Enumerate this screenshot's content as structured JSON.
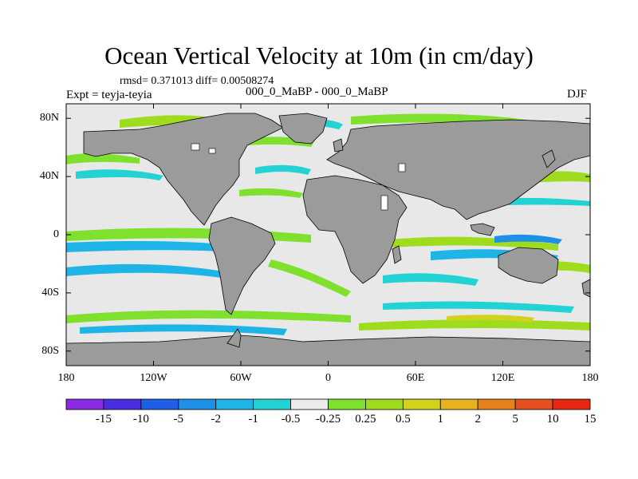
{
  "title": "Ocean Vertical Velocity at 10m (in cm/day)",
  "stats_line": "rmsd= 0.371013 diff= 0.00508274",
  "experiment_line": "Expt = teyja-teyia",
  "comparison_line": "000_0_MaBP - 000_0_MaBP",
  "season": "DJF",
  "map": {
    "lat_ticks": [
      {
        "label": "80N",
        "value": 80
      },
      {
        "label": "40N",
        "value": 40
      },
      {
        "label": "0",
        "value": 0
      },
      {
        "label": "40S",
        "value": -40
      },
      {
        "label": "80S",
        "value": -80
      }
    ],
    "lon_ticks": [
      {
        "label": "180",
        "value": -180
      },
      {
        "label": "120W",
        "value": -120
      },
      {
        "label": "60W",
        "value": -60
      },
      {
        "label": "0",
        "value": 0
      },
      {
        "label": "60E",
        "value": 60
      },
      {
        "label": "120E",
        "value": 120
      },
      {
        "label": "180",
        "value": 180
      }
    ],
    "land_color": "#9b9b9b",
    "ocean_background": "#e8e8e8"
  },
  "colorbar": {
    "colors": [
      "#8a2be2",
      "#4b2ee0",
      "#1e5fe6",
      "#1e90e6",
      "#1fb4e6",
      "#23d2d2",
      "#ebebeb",
      "#7fe02e",
      "#a0dc1e",
      "#d2d21e",
      "#e6b41e",
      "#e6821e",
      "#e6501e",
      "#e62814"
    ],
    "labels": [
      "-15",
      "-10",
      "-5",
      "-2",
      "-1",
      "-0.5",
      "-0.25",
      "0.25",
      "0.5",
      "1",
      "2",
      "5",
      "10",
      "15"
    ]
  }
}
